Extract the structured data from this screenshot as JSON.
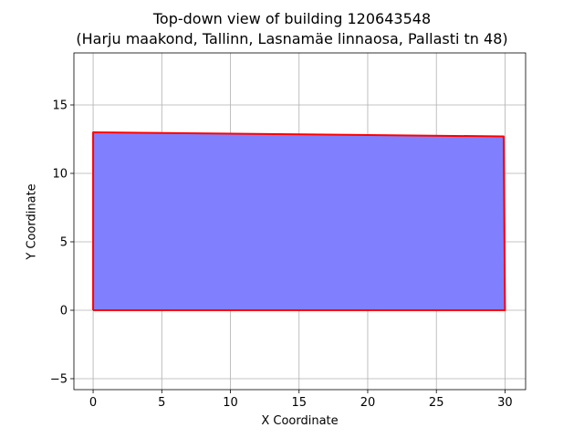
{
  "chart_data": {
    "type": "area",
    "title": "Top-down view of building 120643548",
    "subtitle": "(Harju maakond, Tallinn, Lasnamäe linnaosa, Pallasti tn 48)",
    "xlabel": "X Coordinate",
    "ylabel": "Y Coordinate",
    "xlim": [
      -1.4,
      31.5
    ],
    "ylim": [
      -5.8,
      18.8
    ],
    "xticks": [
      0,
      5,
      10,
      15,
      20,
      25,
      30
    ],
    "yticks": [
      -5,
      0,
      5,
      10,
      15
    ],
    "grid": true,
    "series": [
      {
        "polygon": [
          [
            0,
            0
          ],
          [
            30,
            0
          ],
          [
            29.9,
            12.7
          ],
          [
            0,
            13.0
          ],
          [
            0,
            0
          ]
        ],
        "fill_color": "#8080ff",
        "edge_color": "#ff0000"
      }
    ]
  }
}
